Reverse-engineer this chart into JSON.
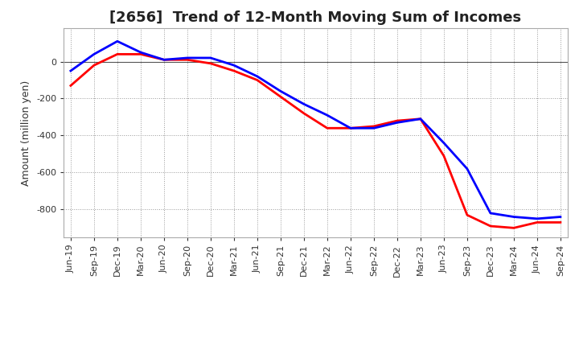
{
  "title": "[2656]  Trend of 12-Month Moving Sum of Incomes",
  "ylabel": "Amount (million yen)",
  "xlabels": [
    "Jun-19",
    "Sep-19",
    "Dec-19",
    "Mar-20",
    "Jun-20",
    "Sep-20",
    "Dec-20",
    "Mar-21",
    "Jun-21",
    "Sep-21",
    "Dec-21",
    "Mar-22",
    "Jun-22",
    "Sep-22",
    "Dec-22",
    "Mar-23",
    "Jun-23",
    "Sep-23",
    "Dec-23",
    "Mar-24",
    "Jun-24",
    "Sep-24"
  ],
  "ordinary_income": [
    -50,
    40,
    110,
    50,
    10,
    20,
    20,
    -20,
    -80,
    -160,
    -230,
    -290,
    -360,
    -360,
    -330,
    -310,
    -440,
    -580,
    -820,
    -840,
    -850,
    -840
  ],
  "net_income": [
    -130,
    -20,
    40,
    40,
    10,
    10,
    -10,
    -50,
    -100,
    -190,
    -280,
    -360,
    -360,
    -350,
    -320,
    -310,
    -510,
    -830,
    -890,
    -900,
    -870,
    -870
  ],
  "ordinary_color": "#0000ff",
  "net_color": "#ff0000",
  "ylim": [
    -950,
    180
  ],
  "yticks": [
    -800,
    -600,
    -400,
    -200,
    0
  ],
  "background_color": "#ffffff",
  "plot_bg_color": "#ffffff",
  "grid_color": "#999999",
  "title_fontsize": 13,
  "axis_fontsize": 9,
  "tick_fontsize": 8,
  "legend_fontsize": 10
}
